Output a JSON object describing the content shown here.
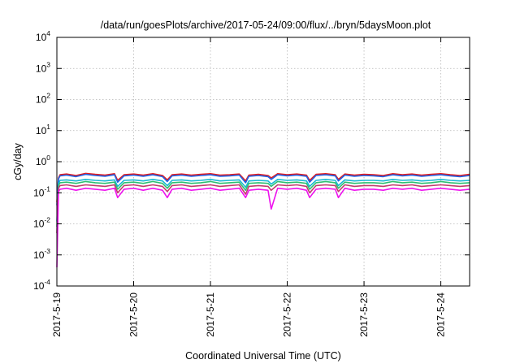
{
  "chart_data": {
    "type": "line",
    "title": "/data/run/goesPlots/archive/2017-05-24/09:00/flux/../bryn/5daysMoon.plot",
    "xlabel": "Coordinated Universal Time (UTC)",
    "ylabel": "cGy/day",
    "yscale": "log",
    "ylim": [
      "1e-4",
      "1e4"
    ],
    "y_ticks": [
      {
        "base": "10",
        "exp": "-4",
        "value": 0.0001
      },
      {
        "base": "10",
        "exp": "-3",
        "value": 0.001
      },
      {
        "base": "10",
        "exp": "-2",
        "value": 0.01
      },
      {
        "base": "10",
        "exp": "-1",
        "value": 0.1
      },
      {
        "base": "10",
        "exp": "0",
        "value": 1
      },
      {
        "base": "10",
        "exp": "1",
        "value": 10
      },
      {
        "base": "10",
        "exp": "2",
        "value": 100
      },
      {
        "base": "10",
        "exp": "3",
        "value": 1000
      },
      {
        "base": "10",
        "exp": "4",
        "value": 10000
      }
    ],
    "xlim": [
      "2017-05-19 00:00",
      "2017-05-24 09:00"
    ],
    "x_ticks": [
      "2017-5-19",
      "2017-5-20",
      "2017-5-21",
      "2017-5-22",
      "2017-5-23",
      "2017-5-24"
    ],
    "grid": true,
    "x": [
      "2017-05-19 00:00",
      "2017-05-19 00:30",
      "2017-05-19 01:00",
      "2017-05-19 03:00",
      "2017-05-19 06:00",
      "2017-05-19 09:00",
      "2017-05-19 12:00",
      "2017-05-19 15:00",
      "2017-05-19 18:00",
      "2017-05-19 19:00",
      "2017-05-19 21:00",
      "2017-05-20 00:00",
      "2017-05-20 03:00",
      "2017-05-20 06:00",
      "2017-05-20 09:00",
      "2017-05-20 10:30",
      "2017-05-20 12:00",
      "2017-05-20 15:00",
      "2017-05-20 18:00",
      "2017-05-20 21:00",
      "2017-05-21 00:00",
      "2017-05-21 03:00",
      "2017-05-21 06:00",
      "2017-05-21 09:00",
      "2017-05-21 11:00",
      "2017-05-21 12:00",
      "2017-05-21 15:00",
      "2017-05-21 18:00",
      "2017-05-21 19:00",
      "2017-05-21 21:00",
      "2017-05-22 00:00",
      "2017-05-22 03:00",
      "2017-05-22 06:00",
      "2017-05-22 07:00",
      "2017-05-22 09:00",
      "2017-05-22 12:00",
      "2017-05-22 15:00",
      "2017-05-22 16:00",
      "2017-05-22 18:00",
      "2017-05-22 21:00",
      "2017-05-23 00:00",
      "2017-05-23 03:00",
      "2017-05-23 06:00",
      "2017-05-23 09:00",
      "2017-05-23 12:00",
      "2017-05-23 15:00",
      "2017-05-23 18:00",
      "2017-05-23 21:00",
      "2017-05-24 00:00",
      "2017-05-24 03:00",
      "2017-05-24 06:00",
      "2017-05-24 09:00"
    ],
    "series": [
      {
        "color": "#e41a1c",
        "values": [
          0.05,
          0.3,
          0.38,
          0.4,
          0.36,
          0.42,
          0.39,
          0.37,
          0.41,
          0.25,
          0.38,
          0.4,
          0.37,
          0.41,
          0.36,
          0.26,
          0.38,
          0.4,
          0.37,
          0.39,
          0.41,
          0.37,
          0.38,
          0.4,
          0.24,
          0.37,
          0.39,
          0.36,
          0.3,
          0.41,
          0.38,
          0.4,
          0.37,
          0.25,
          0.39,
          0.41,
          0.38,
          0.27,
          0.4,
          0.37,
          0.39,
          0.38,
          0.36,
          0.41,
          0.38,
          0.4,
          0.37,
          0.39,
          0.41,
          0.38,
          0.36,
          0.39
        ]
      },
      {
        "color": "#1f63e6",
        "values": [
          0.04,
          0.28,
          0.35,
          0.37,
          0.33,
          0.39,
          0.36,
          0.34,
          0.38,
          0.22,
          0.35,
          0.37,
          0.34,
          0.38,
          0.33,
          0.23,
          0.35,
          0.37,
          0.34,
          0.36,
          0.38,
          0.34,
          0.35,
          0.37,
          0.21,
          0.34,
          0.36,
          0.33,
          0.27,
          0.38,
          0.35,
          0.37,
          0.34,
          0.22,
          0.36,
          0.38,
          0.35,
          0.24,
          0.37,
          0.34,
          0.36,
          0.35,
          0.33,
          0.38,
          0.35,
          0.37,
          0.34,
          0.36,
          0.38,
          0.35,
          0.33,
          0.36
        ]
      },
      {
        "color": "#17b8d4",
        "values": [
          0.012,
          0.2,
          0.25,
          0.26,
          0.24,
          0.27,
          0.25,
          0.24,
          0.26,
          0.16,
          0.25,
          0.26,
          0.24,
          0.27,
          0.24,
          0.17,
          0.25,
          0.26,
          0.24,
          0.25,
          0.27,
          0.24,
          0.25,
          0.26,
          0.15,
          0.24,
          0.25,
          0.24,
          0.19,
          0.27,
          0.25,
          0.26,
          0.24,
          0.16,
          0.25,
          0.27,
          0.25,
          0.17,
          0.26,
          0.24,
          0.25,
          0.25,
          0.24,
          0.27,
          0.25,
          0.26,
          0.24,
          0.25,
          0.27,
          0.25,
          0.24,
          0.25
        ]
      },
      {
        "color": "#2fbf71",
        "values": [
          0.008,
          0.17,
          0.21,
          0.22,
          0.2,
          0.23,
          0.21,
          0.2,
          0.22,
          0.13,
          0.21,
          0.22,
          0.2,
          0.23,
          0.2,
          0.14,
          0.21,
          0.22,
          0.2,
          0.21,
          0.23,
          0.2,
          0.21,
          0.22,
          0.12,
          0.2,
          0.21,
          0.2,
          0.16,
          0.23,
          0.21,
          0.22,
          0.2,
          0.13,
          0.21,
          0.23,
          0.21,
          0.14,
          0.22,
          0.2,
          0.21,
          0.21,
          0.2,
          0.23,
          0.21,
          0.22,
          0.2,
          0.21,
          0.23,
          0.21,
          0.2,
          0.21
        ]
      },
      {
        "color": "#c23b6e",
        "values": [
          0.005,
          0.14,
          0.17,
          0.18,
          0.16,
          0.18,
          0.17,
          0.16,
          0.18,
          0.1,
          0.17,
          0.18,
          0.16,
          0.18,
          0.16,
          0.11,
          0.17,
          0.18,
          0.16,
          0.17,
          0.18,
          0.16,
          0.17,
          0.18,
          0.09,
          0.16,
          0.17,
          0.16,
          0.12,
          0.18,
          0.17,
          0.18,
          0.16,
          0.1,
          0.17,
          0.18,
          0.17,
          0.11,
          0.18,
          0.16,
          0.17,
          0.17,
          0.16,
          0.18,
          0.17,
          0.18,
          0.16,
          0.17,
          0.18,
          0.17,
          0.16,
          0.17
        ]
      },
      {
        "color": "#ee11ee",
        "values": [
          0.0004,
          0.11,
          0.13,
          0.14,
          0.12,
          0.14,
          0.13,
          0.12,
          0.14,
          0.07,
          0.13,
          0.14,
          0.12,
          0.14,
          0.12,
          0.07,
          0.13,
          0.14,
          0.12,
          0.13,
          0.14,
          0.12,
          0.13,
          0.14,
          0.07,
          0.12,
          0.13,
          0.12,
          0.03,
          0.14,
          0.13,
          0.14,
          0.12,
          0.07,
          0.13,
          0.14,
          0.13,
          0.07,
          0.14,
          0.12,
          0.13,
          0.13,
          0.12,
          0.14,
          0.13,
          0.14,
          0.12,
          0.13,
          0.14,
          0.13,
          0.12,
          0.13
        ]
      }
    ]
  }
}
